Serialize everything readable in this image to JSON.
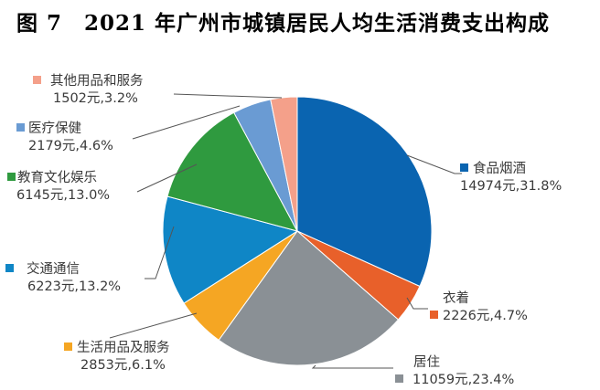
{
  "title": "图 7　2021 年广州市城镇居民人均生活消费支出构成",
  "chart_data": {
    "type": "pie",
    "title": "图 7 2021 年广州市城镇居民人均生活消费支出构成",
    "unit": "元",
    "slices": [
      {
        "name": "食品烟酒",
        "value": 14974,
        "percent": 31.8,
        "color": "#0a64b0",
        "value_label": "14974元,31.8%"
      },
      {
        "name": "衣着",
        "value": 2226,
        "percent": 4.7,
        "color": "#e8602a",
        "value_label": "2226元,4.7%"
      },
      {
        "name": "居住",
        "value": 11059,
        "percent": 23.4,
        "color": "#8a9095",
        "value_label": "11059元,23.4%"
      },
      {
        "name": "生活用品及服务",
        "value": 2853,
        "percent": 6.1,
        "color": "#f5a623",
        "value_label": "2853元,6.1%"
      },
      {
        "name": "交通通信",
        "value": 6223,
        "percent": 13.2,
        "color": "#0f86c6",
        "value_label": "6223元,13.2%"
      },
      {
        "name": "教育文化娱乐",
        "value": 6145,
        "percent": 13.0,
        "color": "#2f9a3f",
        "value_label": "6145元,13.0%"
      },
      {
        "name": "医疗保健",
        "value": 2179,
        "percent": 4.6,
        "color": "#6a9bd3",
        "value_label": "2179元,4.6%"
      },
      {
        "name": "其他用品和服务",
        "value": 1502,
        "percent": 3.2,
        "color": "#f4a08a",
        "value_label": "1502元,3.2%"
      }
    ],
    "start_angle": "12 o'clock, clockwise",
    "legend_position": "callout labels around pie"
  }
}
